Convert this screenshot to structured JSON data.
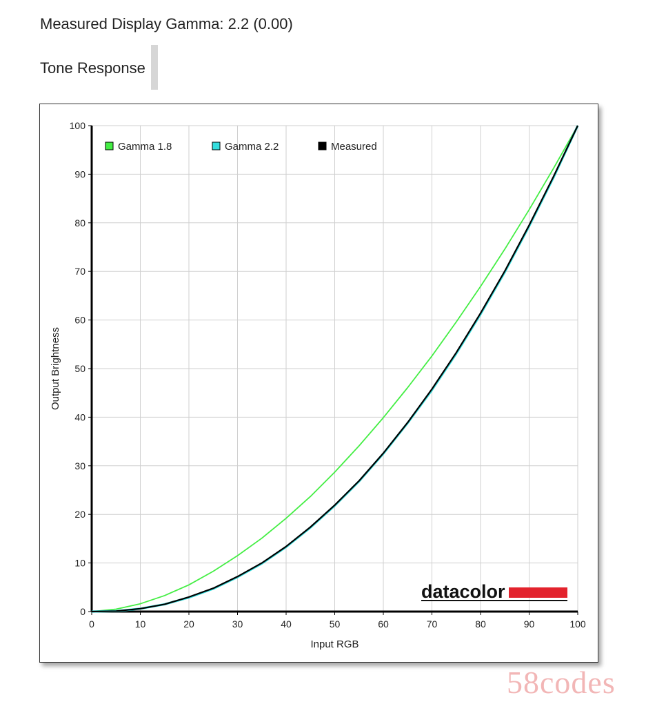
{
  "header": {
    "measured_gamma_text": "Measured Display Gamma: 2.2 (0.00)",
    "section_title": "Tone Response"
  },
  "chart_data": {
    "type": "line",
    "xlabel": "Input RGB",
    "ylabel": "Output Brightness",
    "xlim": [
      0,
      100
    ],
    "ylim": [
      0,
      100
    ],
    "x_ticks": [
      0,
      10,
      20,
      30,
      40,
      50,
      60,
      70,
      80,
      90,
      100
    ],
    "y_ticks": [
      0,
      10,
      20,
      30,
      40,
      50,
      60,
      70,
      80,
      90,
      100
    ],
    "grid": true,
    "legend_position": "top-left",
    "x": [
      0,
      5,
      10,
      15,
      20,
      25,
      30,
      35,
      40,
      45,
      50,
      55,
      60,
      65,
      70,
      75,
      80,
      85,
      90,
      95,
      100
    ],
    "series": [
      {
        "name": "Gamma 1.8",
        "color": "#44ee44",
        "values": [
          0,
          0.5,
          1.6,
          3.3,
          5.5,
          8.3,
          11.5,
          15.1,
          19.2,
          23.7,
          28.7,
          34.1,
          39.9,
          46.1,
          52.6,
          59.6,
          66.9,
          74.6,
          82.7,
          91.2,
          100
        ]
      },
      {
        "name": "Gamma 2.2",
        "color": "#33dddd",
        "values": [
          0,
          0.1,
          0.6,
          1.5,
          2.9,
          4.7,
          7.1,
          9.9,
          13.3,
          17.3,
          21.8,
          26.8,
          32.5,
          38.8,
          45.6,
          53.1,
          61.2,
          69.9,
          79.3,
          89.3,
          100
        ]
      },
      {
        "name": "Measured",
        "color": "#000000",
        "values": [
          0,
          0.1,
          0.6,
          1.5,
          3.0,
          4.8,
          7.2,
          10.0,
          13.4,
          17.4,
          21.9,
          26.9,
          32.6,
          38.9,
          45.8,
          53.3,
          61.4,
          70.1,
          79.5,
          89.5,
          100
        ]
      }
    ]
  },
  "logo": {
    "text": "datacolor",
    "bar_color": "#e3232d"
  },
  "watermark": "58codes"
}
